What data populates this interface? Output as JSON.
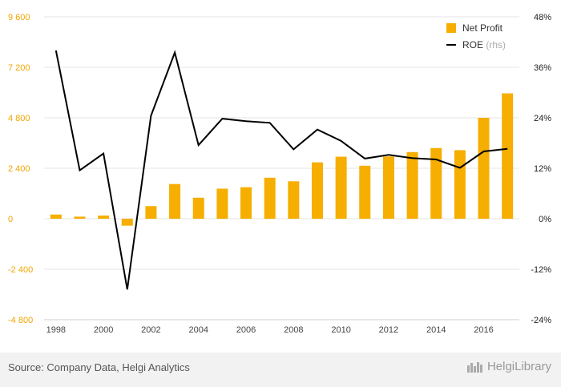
{
  "chart_data": {
    "type": "bar+line",
    "categories": [
      "1998",
      "1999",
      "2000",
      "2001",
      "2002",
      "2003",
      "2004",
      "2005",
      "2006",
      "2007",
      "2008",
      "2009",
      "2010",
      "2011",
      "2012",
      "2013",
      "2014",
      "2015",
      "2016",
      "2017"
    ],
    "x_tick_labels": [
      "1998",
      "2000",
      "2002",
      "2004",
      "2006",
      "2008",
      "2010",
      "2012",
      "2014",
      "2016"
    ],
    "series": [
      {
        "name": "Net Profit",
        "axis": "left",
        "type": "bar",
        "color": "#f6ae00",
        "values": [
          200,
          100,
          150,
          -330,
          600,
          1650,
          1000,
          1430,
          1500,
          1950,
          1780,
          2680,
          2950,
          2520,
          2960,
          3170,
          3360,
          3260,
          4800,
          5960
        ]
      },
      {
        "name": "ROE",
        "name_suffix": "(rhs)",
        "axis": "right",
        "type": "line",
        "color": "#000000",
        "values": [
          40.0,
          11.5,
          15.5,
          -16.8,
          24.5,
          39.5,
          17.5,
          23.8,
          23.2,
          22.8,
          16.5,
          21.2,
          18.5,
          14.3,
          15.2,
          14.4,
          14.1,
          12.1,
          16.0,
          16.6
        ]
      }
    ],
    "y_left": {
      "ylim": [
        -4800,
        9600
      ],
      "ticks": [
        "-4 800",
        "-2 400",
        "0",
        "2 400",
        "4 800",
        "7 200",
        "9 600"
      ]
    },
    "y_right": {
      "ylim": [
        -24,
        48
      ],
      "ticks": [
        "-24%",
        "-12%",
        "0%",
        "12%",
        "24%",
        "36%",
        "48%"
      ]
    },
    "grid": true,
    "legend_position": "top-right"
  },
  "footer": {
    "source": "Source: Company Data, Helgi Analytics",
    "brand": "HelgiLibrary"
  }
}
